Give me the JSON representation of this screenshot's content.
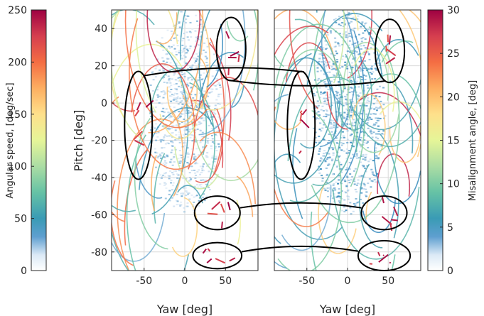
{
  "chart_data": [
    {
      "type": "heatmap",
      "panel": "left",
      "xlabel": "Yaw [deg]",
      "ylabel": "Pitch [deg]",
      "xlim": [
        -90,
        90
      ],
      "ylim": [
        50,
        -90
      ],
      "y_axis_reversed": true,
      "xticks": [
        -50,
        0,
        50
      ],
      "yticks": [
        -80,
        -60,
        -40,
        -20,
        0,
        20,
        40
      ],
      "xtick_labels": [
        "-50",
        "0",
        "50"
      ],
      "ytick_labels": [
        "-80",
        "-60",
        "-40",
        "-20",
        "0",
        "20",
        "40"
      ],
      "grid": true,
      "color_quantity": "Angular speed, [deg/sec]",
      "colorbar_position": "left",
      "highlight_regions": [
        {
          "center": [
            40,
            -82
          ],
          "radii": [
            30,
            7
          ]
        },
        {
          "center": [
            40,
            -59
          ],
          "radii": [
            28,
            9
          ]
        },
        {
          "center": [
            -57,
            -12
          ],
          "radii": [
            17,
            29
          ]
        },
        {
          "center": [
            57,
            29
          ],
          "radii": [
            18,
            17
          ]
        }
      ]
    },
    {
      "type": "heatmap",
      "panel": "right",
      "xlabel": "Yaw [deg]",
      "xlim": [
        -90,
        90
      ],
      "ylim": [
        50,
        -90
      ],
      "y_axis_reversed": true,
      "xticks": [
        -50,
        0,
        50
      ],
      "xtick_labels": [
        "-50",
        "0",
        "50"
      ],
      "grid": true,
      "color_quantity": "Misalignment angle, [deg]",
      "colorbar_position": "right",
      "highlight_regions": [
        {
          "center": [
            45,
            -82
          ],
          "radii": [
            32,
            8
          ]
        },
        {
          "center": [
            45,
            -59
          ],
          "radii": [
            28,
            9
          ]
        },
        {
          "center": [
            -57,
            -12
          ],
          "radii": [
            17,
            29
          ]
        },
        {
          "center": [
            52,
            28
          ],
          "radii": [
            18,
            17
          ]
        }
      ]
    }
  ],
  "colorbars": {
    "left": {
      "label": "Angular speed, [deg/sec]",
      "range": [
        0,
        250
      ],
      "ticks": [
        0,
        50,
        100,
        150,
        200,
        250
      ],
      "tick_labels": [
        "0",
        "50",
        "100",
        "150",
        "200",
        "250"
      ]
    },
    "right": {
      "label": "Misalignment angle, [deg]",
      "range": [
        0,
        30
      ],
      "ticks": [
        0,
        5,
        10,
        15,
        20,
        25,
        30
      ],
      "tick_labels": [
        "0",
        "5",
        "10",
        "15",
        "20",
        "25",
        "30"
      ]
    }
  },
  "colormap": [
    "#ffffff",
    "#c6dbef",
    "#3288bd",
    "#66c2a5",
    "#abdda4",
    "#e6f598",
    "#fee08b",
    "#fdae61",
    "#f46d43",
    "#d53e4f",
    "#9e0142"
  ]
}
